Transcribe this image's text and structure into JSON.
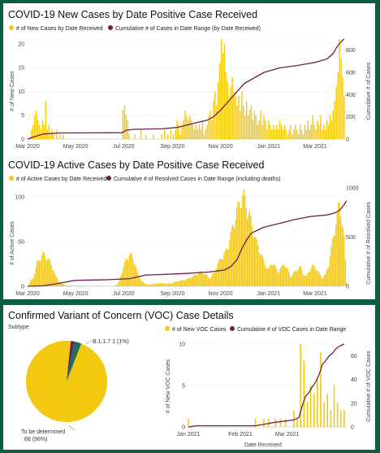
{
  "colors": {
    "bar": "#f2c811",
    "line": "#6b1f4e",
    "grid": "#e4e4e4",
    "pie_other": "#1f6f5c"
  },
  "chart_data": [
    {
      "type": "bar",
      "title": "COVID-19 New Cases by Date Positive Case Received",
      "legend": [
        "# of New Cases by Date Received",
        "Cumulative # of Cases in Date Range (by Date Received)"
      ],
      "ylabel": "# of New Cases",
      "y2label": "Cumulative # of Cases",
      "x_range": [
        "2020-03-01",
        "2021-04-05"
      ],
      "ylim": [
        0,
        21
      ],
      "y2lim": [
        0,
        900
      ],
      "xticks": [
        "Mar 2020",
        "May 2020",
        "Jul 2020",
        "Sep 2020",
        "Nov 2020",
        "Jan 2021",
        "Mar 2021"
      ],
      "yticks": [
        0,
        5,
        10,
        15,
        20
      ],
      "y2ticks": [
        0,
        200,
        400,
        600,
        800
      ],
      "bars": [
        [
          5,
          2
        ],
        [
          7,
          3
        ],
        [
          9,
          5
        ],
        [
          11,
          6
        ],
        [
          13,
          4
        ],
        [
          15,
          3
        ],
        [
          17,
          2
        ],
        [
          19,
          4
        ],
        [
          21,
          3
        ],
        [
          23,
          8
        ],
        [
          25,
          2
        ],
        [
          27,
          3
        ],
        [
          29,
          1
        ],
        [
          31,
          2
        ],
        [
          33,
          1
        ],
        [
          37,
          2
        ],
        [
          41,
          1
        ],
        [
          45,
          1
        ],
        [
          121,
          6
        ],
        [
          123,
          7
        ],
        [
          125,
          5
        ],
        [
          127,
          4
        ],
        [
          129,
          1
        ],
        [
          136,
          1
        ],
        [
          144,
          2
        ],
        [
          150,
          1
        ],
        [
          160,
          1
        ],
        [
          170,
          1
        ],
        [
          174,
          2
        ],
        [
          178,
          1
        ],
        [
          182,
          2
        ],
        [
          185,
          1
        ],
        [
          188,
          2
        ],
        [
          190,
          4
        ],
        [
          192,
          3
        ],
        [
          194,
          1
        ],
        [
          196,
          3
        ],
        [
          198,
          4
        ],
        [
          200,
          6
        ],
        [
          202,
          5
        ],
        [
          204,
          4
        ],
        [
          206,
          5
        ],
        [
          208,
          4
        ],
        [
          210,
          3
        ],
        [
          212,
          2
        ],
        [
          214,
          3
        ],
        [
          216,
          2
        ],
        [
          218,
          3
        ],
        [
          220,
          2
        ],
        [
          222,
          4
        ],
        [
          224,
          1
        ],
        [
          226,
          2
        ],
        [
          228,
          3
        ],
        [
          230,
          5
        ],
        [
          232,
          6
        ],
        [
          234,
          4
        ],
        [
          236,
          8
        ],
        [
          238,
          10
        ],
        [
          240,
          7
        ],
        [
          242,
          12
        ],
        [
          244,
          16
        ],
        [
          246,
          21
        ],
        [
          248,
          18
        ],
        [
          250,
          20
        ],
        [
          252,
          14
        ],
        [
          254,
          12
        ],
        [
          256,
          9
        ],
        [
          258,
          11
        ],
        [
          260,
          13
        ],
        [
          262,
          10
        ],
        [
          264,
          9
        ],
        [
          266,
          7
        ],
        [
          268,
          9
        ],
        [
          270,
          6
        ],
        [
          272,
          10
        ],
        [
          274,
          7
        ],
        [
          276,
          5
        ],
        [
          278,
          8
        ],
        [
          280,
          5
        ],
        [
          282,
          6
        ],
        [
          284,
          7
        ],
        [
          286,
          4
        ],
        [
          288,
          6
        ],
        [
          290,
          5
        ],
        [
          292,
          3
        ],
        [
          294,
          4
        ],
        [
          296,
          6
        ],
        [
          298,
          3
        ],
        [
          300,
          5
        ],
        [
          302,
          4
        ],
        [
          304,
          2
        ],
        [
          306,
          4
        ],
        [
          308,
          3
        ],
        [
          310,
          2
        ],
        [
          312,
          3
        ],
        [
          314,
          2
        ],
        [
          316,
          3
        ],
        [
          318,
          2
        ],
        [
          320,
          4
        ],
        [
          322,
          3
        ],
        [
          324,
          2
        ],
        [
          326,
          3
        ],
        [
          328,
          2
        ],
        [
          330,
          1
        ],
        [
          332,
          2
        ],
        [
          334,
          3
        ],
        [
          336,
          1
        ],
        [
          338,
          2
        ],
        [
          340,
          3
        ],
        [
          342,
          2
        ],
        [
          344,
          1
        ],
        [
          346,
          3
        ],
        [
          348,
          2
        ],
        [
          350,
          1
        ],
        [
          352,
          3
        ],
        [
          354,
          2
        ],
        [
          356,
          4
        ],
        [
          358,
          2
        ],
        [
          360,
          3
        ],
        [
          362,
          5
        ],
        [
          364,
          3
        ],
        [
          366,
          2
        ],
        [
          368,
          4
        ],
        [
          370,
          3
        ],
        [
          372,
          5
        ],
        [
          374,
          2
        ],
        [
          376,
          3
        ],
        [
          378,
          2
        ],
        [
          380,
          4
        ],
        [
          382,
          3
        ],
        [
          384,
          5
        ],
        [
          386,
          4
        ],
        [
          388,
          6
        ],
        [
          390,
          8
        ],
        [
          392,
          11
        ],
        [
          394,
          14
        ],
        [
          396,
          21
        ],
        [
          398,
          17
        ],
        [
          400,
          13
        ],
        [
          402,
          9
        ]
      ],
      "cumulative": [
        [
          0,
          0
        ],
        [
          3,
          8
        ],
        [
          10,
          25
        ],
        [
          20,
          45
        ],
        [
          40,
          55
        ],
        [
          120,
          57
        ],
        [
          125,
          80
        ],
        [
          135,
          88
        ],
        [
          170,
          92
        ],
        [
          190,
          105
        ],
        [
          210,
          140
        ],
        [
          228,
          170
        ],
        [
          236,
          200
        ],
        [
          245,
          260
        ],
        [
          255,
          340
        ],
        [
          265,
          420
        ],
        [
          275,
          500
        ],
        [
          290,
          560
        ],
        [
          300,
          600
        ],
        [
          320,
          640
        ],
        [
          345,
          665
        ],
        [
          365,
          690
        ],
        [
          380,
          720
        ],
        [
          388,
          770
        ],
        [
          392,
          820
        ],
        [
          396,
          860
        ],
        [
          400,
          890
        ],
        [
          402,
          900
        ]
      ]
    },
    {
      "type": "bar",
      "title": "COVID-19 Active Cases by Date Positive Case Received",
      "legend": [
        "# of Active Cases by Date Received",
        "Cumulative # of Resolved Cases in Date Range (including deaths)"
      ],
      "ylabel": "# of Active Cases",
      "y2label": "Cumulative # of Resolved Cases",
      "x_range": [
        "2020-03-01",
        "2021-04-05"
      ],
      "ylim": [
        0,
        110
      ],
      "y2lim": [
        0,
        1000
      ],
      "xticks": [
        "Mar 2020",
        "May 2020",
        "Jul 2020",
        "Sep 2020",
        "Nov 2020",
        "Jan 2021",
        "Mar 2021"
      ],
      "yticks": [
        0,
        50,
        100
      ],
      "y2ticks": [
        0,
        500,
        1000
      ],
      "active_curve": [
        [
          0,
          0
        ],
        [
          3,
          5
        ],
        [
          8,
          12
        ],
        [
          12,
          28
        ],
        [
          16,
          35
        ],
        [
          20,
          39
        ],
        [
          24,
          36
        ],
        [
          28,
          30
        ],
        [
          32,
          22
        ],
        [
          36,
          12
        ],
        [
          40,
          6
        ],
        [
          44,
          3
        ],
        [
          50,
          1
        ],
        [
          110,
          0
        ],
        [
          115,
          4
        ],
        [
          120,
          18
        ],
        [
          124,
          30
        ],
        [
          128,
          38
        ],
        [
          132,
          37
        ],
        [
          136,
          29
        ],
        [
          140,
          15
        ],
        [
          146,
          5
        ],
        [
          152,
          2
        ],
        [
          170,
          4
        ],
        [
          180,
          3
        ],
        [
          190,
          6
        ],
        [
          200,
          8
        ],
        [
          210,
          12
        ],
        [
          220,
          18
        ],
        [
          226,
          14
        ],
        [
          232,
          10
        ],
        [
          238,
          18
        ],
        [
          242,
          28
        ],
        [
          246,
          35
        ],
        [
          250,
          38
        ],
        [
          254,
          48
        ],
        [
          258,
          62
        ],
        [
          262,
          78
        ],
        [
          266,
          92
        ],
        [
          270,
          102
        ],
        [
          274,
          110
        ],
        [
          278,
          97
        ],
        [
          282,
          85
        ],
        [
          286,
          70
        ],
        [
          290,
          55
        ],
        [
          294,
          45
        ],
        [
          298,
          35
        ],
        [
          302,
          26
        ],
        [
          306,
          20
        ],
        [
          310,
          30
        ],
        [
          314,
          24
        ],
        [
          318,
          18
        ],
        [
          322,
          22
        ],
        [
          326,
          28
        ],
        [
          330,
          20
        ],
        [
          334,
          12
        ],
        [
          338,
          16
        ],
        [
          342,
          20
        ],
        [
          346,
          24
        ],
        [
          350,
          15
        ],
        [
          354,
          12
        ],
        [
          358,
          20
        ],
        [
          362,
          25
        ],
        [
          366,
          22
        ],
        [
          370,
          16
        ],
        [
          374,
          10
        ],
        [
          378,
          14
        ],
        [
          382,
          25
        ],
        [
          386,
          48
        ],
        [
          390,
          70
        ],
        [
          394,
          92
        ],
        [
          396,
          98
        ],
        [
          398,
          90
        ],
        [
          402,
          55
        ],
        [
          405,
          5
        ]
      ],
      "cumulative": [
        [
          0,
          0
        ],
        [
          20,
          5
        ],
        [
          40,
          30
        ],
        [
          60,
          60
        ],
        [
          100,
          66
        ],
        [
          130,
          78
        ],
        [
          150,
          115
        ],
        [
          170,
          120
        ],
        [
          200,
          130
        ],
        [
          230,
          145
        ],
        [
          250,
          165
        ],
        [
          258,
          200
        ],
        [
          266,
          270
        ],
        [
          272,
          380
        ],
        [
          278,
          470
        ],
        [
          284,
          540
        ],
        [
          292,
          570
        ],
        [
          300,
          600
        ],
        [
          320,
          640
        ],
        [
          340,
          680
        ],
        [
          360,
          710
        ],
        [
          380,
          725
        ],
        [
          390,
          745
        ],
        [
          396,
          770
        ],
        [
          400,
          810
        ],
        [
          402,
          830
        ],
        [
          405,
          870
        ]
      ]
    },
    {
      "type": "pie",
      "title": "Confirmed Variant of Concern (VOC) Case Details",
      "subtitle": "Subtype",
      "slices": [
        {
          "label": "To be determined",
          "value": 68,
          "percent": "96%",
          "color": "#f2c811"
        },
        {
          "label": "B.1.1.7",
          "value": 1,
          "percent": "1%",
          "color": "#6b1f4e"
        },
        {
          "label": "",
          "value": 2,
          "percent": "",
          "color": "#1f6f5c"
        }
      ],
      "label_b117": "B.1.1.7 1 (1%)",
      "label_tbd_1": "To be determined",
      "label_tbd_2": "68 (96%)"
    },
    {
      "type": "bar",
      "legend": [
        "# of New VOC Cases",
        "Cumulative # of VOC Cases in Date Range"
      ],
      "ylabel": "# of New VOC Cases",
      "y2label": "Cumulative # of VOC Cases",
      "xlabel": "Date Received",
      "x_range": [
        "2021-01-01",
        "2021-04-06"
      ],
      "ylim": [
        0,
        10
      ],
      "y2lim": [
        0,
        70
      ],
      "xticks": [
        "Jan 2021",
        "Feb 2021",
        "Mar 2021"
      ],
      "yticks": [
        0,
        5,
        10
      ],
      "y2ticks": [
        0,
        20,
        40,
        60
      ],
      "bars": [
        [
          0,
          1
        ],
        [
          40,
          1
        ],
        [
          45,
          1
        ],
        [
          48,
          1
        ],
        [
          52,
          1
        ],
        [
          55,
          1
        ],
        [
          58,
          1
        ],
        [
          63,
          2
        ],
        [
          65,
          1
        ],
        [
          67,
          10
        ],
        [
          69,
          8
        ],
        [
          71,
          3
        ],
        [
          73,
          5
        ],
        [
          75,
          4
        ],
        [
          77,
          6
        ],
        [
          79,
          9
        ],
        [
          81,
          3
        ],
        [
          83,
          4
        ],
        [
          85,
          2
        ],
        [
          87,
          5
        ],
        [
          89,
          3
        ],
        [
          91,
          2
        ],
        [
          93,
          2
        ]
      ],
      "cumulative": [
        [
          0,
          0
        ],
        [
          5,
          1
        ],
        [
          40,
          1
        ],
        [
          44,
          2
        ],
        [
          48,
          3
        ],
        [
          52,
          4
        ],
        [
          58,
          5
        ],
        [
          63,
          6
        ],
        [
          66,
          8
        ],
        [
          68,
          18
        ],
        [
          70,
          26
        ],
        [
          72,
          29
        ],
        [
          74,
          34
        ],
        [
          76,
          38
        ],
        [
          78,
          44
        ],
        [
          80,
          53
        ],
        [
          82,
          56
        ],
        [
          84,
          60
        ],
        [
          86,
          62
        ],
        [
          88,
          66
        ],
        [
          90,
          68
        ],
        [
          93,
          70
        ]
      ]
    }
  ]
}
